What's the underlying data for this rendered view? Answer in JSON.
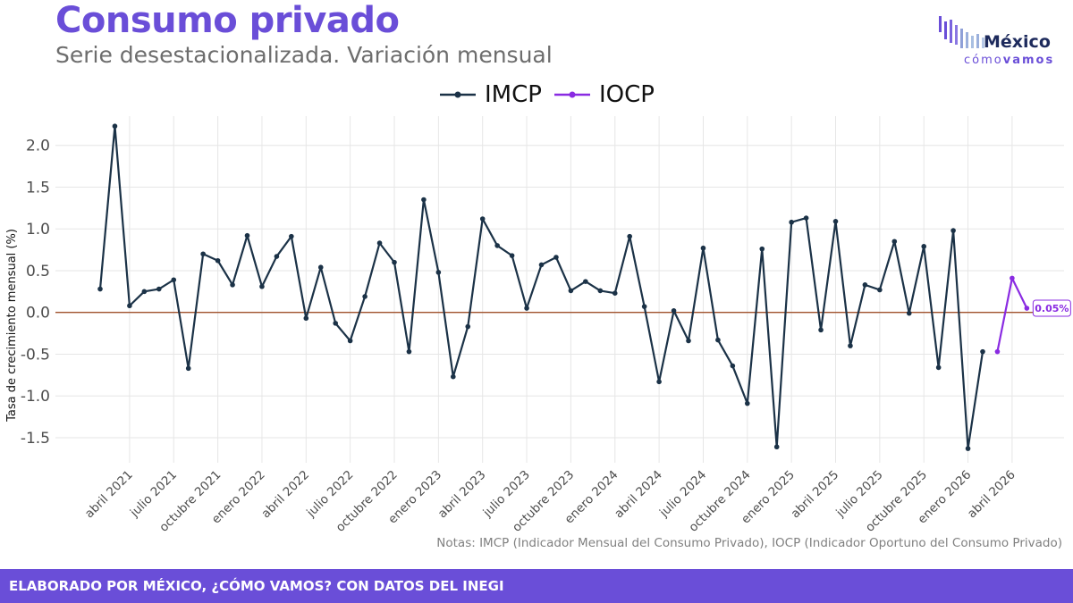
{
  "header": {
    "title": "Consumo privado",
    "subtitle": "Serie desestacionalizada. Variación mensual"
  },
  "logo": {
    "word": "México",
    "sub_light": "cómo",
    "sub_bold": "vamos"
  },
  "legend": {
    "items": [
      {
        "label": "IMCP",
        "color": "#1b3247"
      },
      {
        "label": "IOCP",
        "color": "#8a2be2"
      }
    ]
  },
  "notes": "Notas: IMCP (Indicador Mensual del Consumo Privado), IOCP (Indicador Oportuno del Consumo Privado)",
  "footer": {
    "text": "ELABORADO POR MÉXICO, ¿CÓMO VAMOS? CON DATOS DEL INEGI"
  },
  "chart_data": {
    "type": "line",
    "ylabel": "Tasa de crecimiento mensual (%)",
    "ylim": [
      -1.8,
      2.35
    ],
    "yticks": [
      -1.5,
      -1.0,
      -0.5,
      0.0,
      0.5,
      1.0,
      1.5,
      2.0
    ],
    "ytick_labels": [
      "-1.5",
      "-1.0",
      "-0.5",
      "0.0",
      "0.5",
      "1.0",
      "1.5",
      "2.0"
    ],
    "x_start": "2021-02",
    "xtick_labels": [
      {
        "label": "abril 2021",
        "month": "2021-04"
      },
      {
        "label": "julio 2021",
        "month": "2021-07"
      },
      {
        "label": "octubre 2021",
        "month": "2021-10"
      },
      {
        "label": "enero 2022",
        "month": "2022-01"
      },
      {
        "label": "abril 2022",
        "month": "2022-04"
      },
      {
        "label": "julio 2022",
        "month": "2022-07"
      },
      {
        "label": "octubre 2022",
        "month": "2022-10"
      },
      {
        "label": "enero 2023",
        "month": "2023-01"
      },
      {
        "label": "abril 2023",
        "month": "2023-04"
      },
      {
        "label": "julio 2023",
        "month": "2023-07"
      },
      {
        "label": "octubre 2023",
        "month": "2023-10"
      },
      {
        "label": "enero 2024",
        "month": "2024-01"
      },
      {
        "label": "abril 2024",
        "month": "2024-04"
      },
      {
        "label": "julio 2024",
        "month": "2024-07"
      },
      {
        "label": "octubre 2024",
        "month": "2024-10"
      },
      {
        "label": "enero 2025",
        "month": "2025-01"
      },
      {
        "label": "abril 2025",
        "month": "2025-04"
      },
      {
        "label": "julio 2025",
        "month": "2025-07"
      },
      {
        "label": "octubre 2025",
        "month": "2025-10"
      },
      {
        "label": "enero 2026",
        "month": "2026-01"
      },
      {
        "label": "abril 2026",
        "month": "2026-04"
      }
    ],
    "zero_line_color": "#a0522d",
    "grid": true,
    "legend_position": "top-center",
    "series": [
      {
        "name": "IMCP",
        "color": "#1b3247",
        "start": "2021-02",
        "values": [
          0.28,
          2.23,
          0.08,
          0.25,
          0.28,
          0.39,
          -0.67,
          0.7,
          0.62,
          0.33,
          0.92,
          0.31,
          0.67,
          0.91,
          -0.07,
          0.54,
          -0.13,
          -0.34,
          0.19,
          0.83,
          0.6,
          -0.47,
          1.35,
          0.48,
          -0.77,
          -0.17,
          1.12,
          0.8,
          0.68,
          0.05,
          0.57,
          0.66,
          0.26,
          0.37,
          0.26,
          0.23,
          0.91,
          0.07,
          -0.83,
          0.02,
          -0.34,
          0.77,
          -0.33,
          -0.64,
          -1.09,
          0.76,
          -1.61,
          1.08,
          1.13,
          -0.21,
          1.09,
          -0.4,
          0.33,
          0.27,
          0.85,
          -0.01,
          0.79,
          -0.66,
          0.98,
          -1.63,
          -0.47
        ]
      },
      {
        "name": "IOCP",
        "color": "#8a2be2",
        "start": "2026-03",
        "values": [
          -0.47,
          0.41,
          0.05
        ]
      }
    ],
    "annotations": [
      {
        "text": "0.05%",
        "series": "IOCP",
        "month": "2026-05",
        "value": 0.05
      }
    ]
  }
}
